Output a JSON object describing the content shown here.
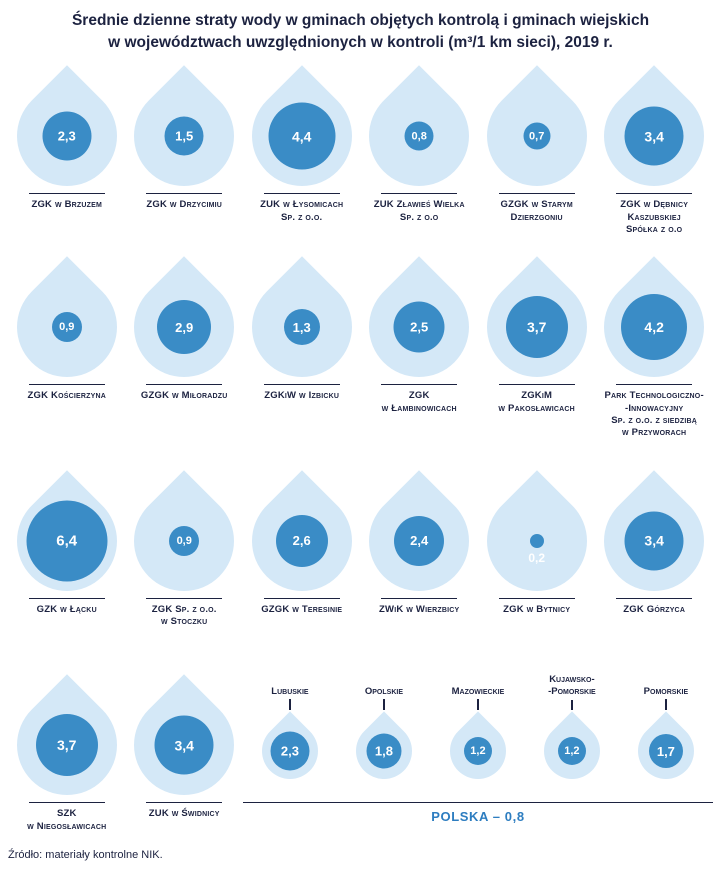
{
  "colors": {
    "drop_light": "#d4e8f7",
    "drop_dark": "#3a8cc6",
    "ink": "#1c2240",
    "accent": "#2d7dc0"
  },
  "source": "Źródło: materiały kontrolne NIK.",
  "chart_data": {
    "type": "pictogram",
    "title": "Średnie dzienne straty wody w gminach objętych kontrolą i gminach wiejskich w województwach uwzględnionych w kontroli (m³/1 km sieci), 2019 r.",
    "title_lines": [
      "Średnie dzienne straty wody w gminach objętych kontrolą i gminach wiejskich",
      "w województwach uwzględnionych w kontroli (m³/1 km sieci), 2019 r."
    ],
    "unit": "m³/1 km sieci",
    "year": "2019 r.",
    "rows": [
      [
        {
          "label_lines": [
            "ZGK w Brzuzem"
          ],
          "value": 2.3,
          "display": "2,3"
        },
        {
          "label_lines": [
            "ZGK w Drzycimiu"
          ],
          "value": 1.5,
          "display": "1,5"
        },
        {
          "label_lines": [
            "ZUK w Łysomicach",
            "Sp. z o.o."
          ],
          "value": 4.4,
          "display": "4,4"
        },
        {
          "label_lines": [
            "ZUK Zławieś Wielka",
            "Sp. z o.o"
          ],
          "value": 0.8,
          "display": "0,8"
        },
        {
          "label_lines": [
            "GZGK w Starym",
            "Dzierzgoniu"
          ],
          "value": 0.7,
          "display": "0,7"
        },
        {
          "label_lines": [
            "ZGK w Dębnicy",
            "Kaszubskiej",
            "Spółka z o.o"
          ],
          "value": 3.4,
          "display": "3,4"
        }
      ],
      [
        {
          "label_lines": [
            "ZGK Kościerzyna"
          ],
          "value": 0.9,
          "display": "0,9"
        },
        {
          "label_lines": [
            "GZGK w Miłoradzu"
          ],
          "value": 2.9,
          "display": "2,9"
        },
        {
          "label_lines": [
            "ZGKiW w Izbicku"
          ],
          "value": 1.3,
          "display": "1,3"
        },
        {
          "label_lines": [
            "ZGK",
            "w Łambinowicach"
          ],
          "value": 2.5,
          "display": "2,5"
        },
        {
          "label_lines": [
            "ZGKiM",
            "w Pakosławicach"
          ],
          "value": 3.7,
          "display": "3,7"
        },
        {
          "label_lines": [
            "Park Technologiczno-",
            "-Innowacyjny",
            "Sp. z o.o. z siedzibą",
            "w Przyworach"
          ],
          "value": 4.2,
          "display": "4,2"
        }
      ],
      [
        {
          "label_lines": [
            "GZK w Łącku"
          ],
          "value": 6.4,
          "display": "6,4"
        },
        {
          "label_lines": [
            "ZGK Sp. z o.o.",
            "w Stoczku"
          ],
          "value": 0.9,
          "display": "0,9"
        },
        {
          "label_lines": [
            "GZGK w Teresinie"
          ],
          "value": 2.6,
          "display": "2,6"
        },
        {
          "label_lines": [
            "ZWiK w Wierzbicy"
          ],
          "value": 2.4,
          "display": "2,4"
        },
        {
          "label_lines": [
            "ZGK w Bytnicy"
          ],
          "value": 0.2,
          "display": "0,2"
        },
        {
          "label_lines": [
            "ZGK Górzyca"
          ],
          "value": 3.4,
          "display": "3,4"
        }
      ],
      [
        {
          "label_lines": [
            "SZK",
            "w Niegosławicach"
          ],
          "value": 3.7,
          "display": "3,7"
        },
        {
          "label_lines": [
            "ZUK w Świdnicy"
          ],
          "value": 3.4,
          "display": "3,4"
        }
      ]
    ],
    "voivodeships": [
      {
        "label_lines": [
          "Lubuskie"
        ],
        "value": 2.3,
        "display": "2,3"
      },
      {
        "label_lines": [
          "Opolskie"
        ],
        "value": 1.8,
        "display": "1,8"
      },
      {
        "label_lines": [
          "Mazowieckie"
        ],
        "value": 1.2,
        "display": "1,2"
      },
      {
        "label_lines": [
          "Kujawsko-",
          "-Pomorskie"
        ],
        "value": 1.2,
        "display": "1,2"
      },
      {
        "label_lines": [
          "Pomorskie"
        ],
        "value": 1.7,
        "display": "1,7"
      }
    ],
    "polska_label": "POLSKA – 0,8",
    "polska_value": 0.8
  }
}
